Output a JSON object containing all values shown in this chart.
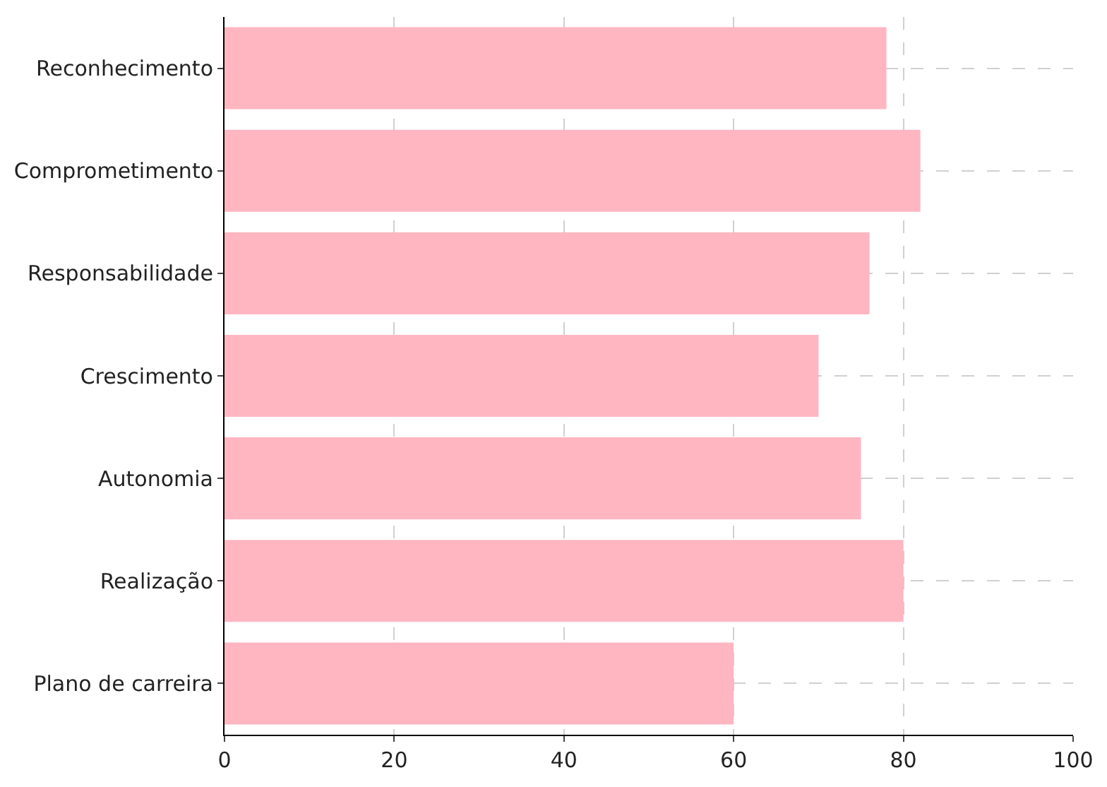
{
  "chart_data": {
    "type": "bar",
    "orientation": "horizontal",
    "categories": [
      "Reconhecimento",
      "Comprometimento",
      "Responsabilidade",
      "Crescimento",
      "Autonomia",
      "Realização",
      "Plano de carreira"
    ],
    "values": [
      78,
      82,
      76,
      70,
      75,
      80,
      60
    ],
    "color": "#ffb6c1",
    "xlim": [
      0,
      100
    ],
    "xticks": [
      0,
      20,
      40,
      60,
      80,
      100
    ],
    "grid": true
  }
}
